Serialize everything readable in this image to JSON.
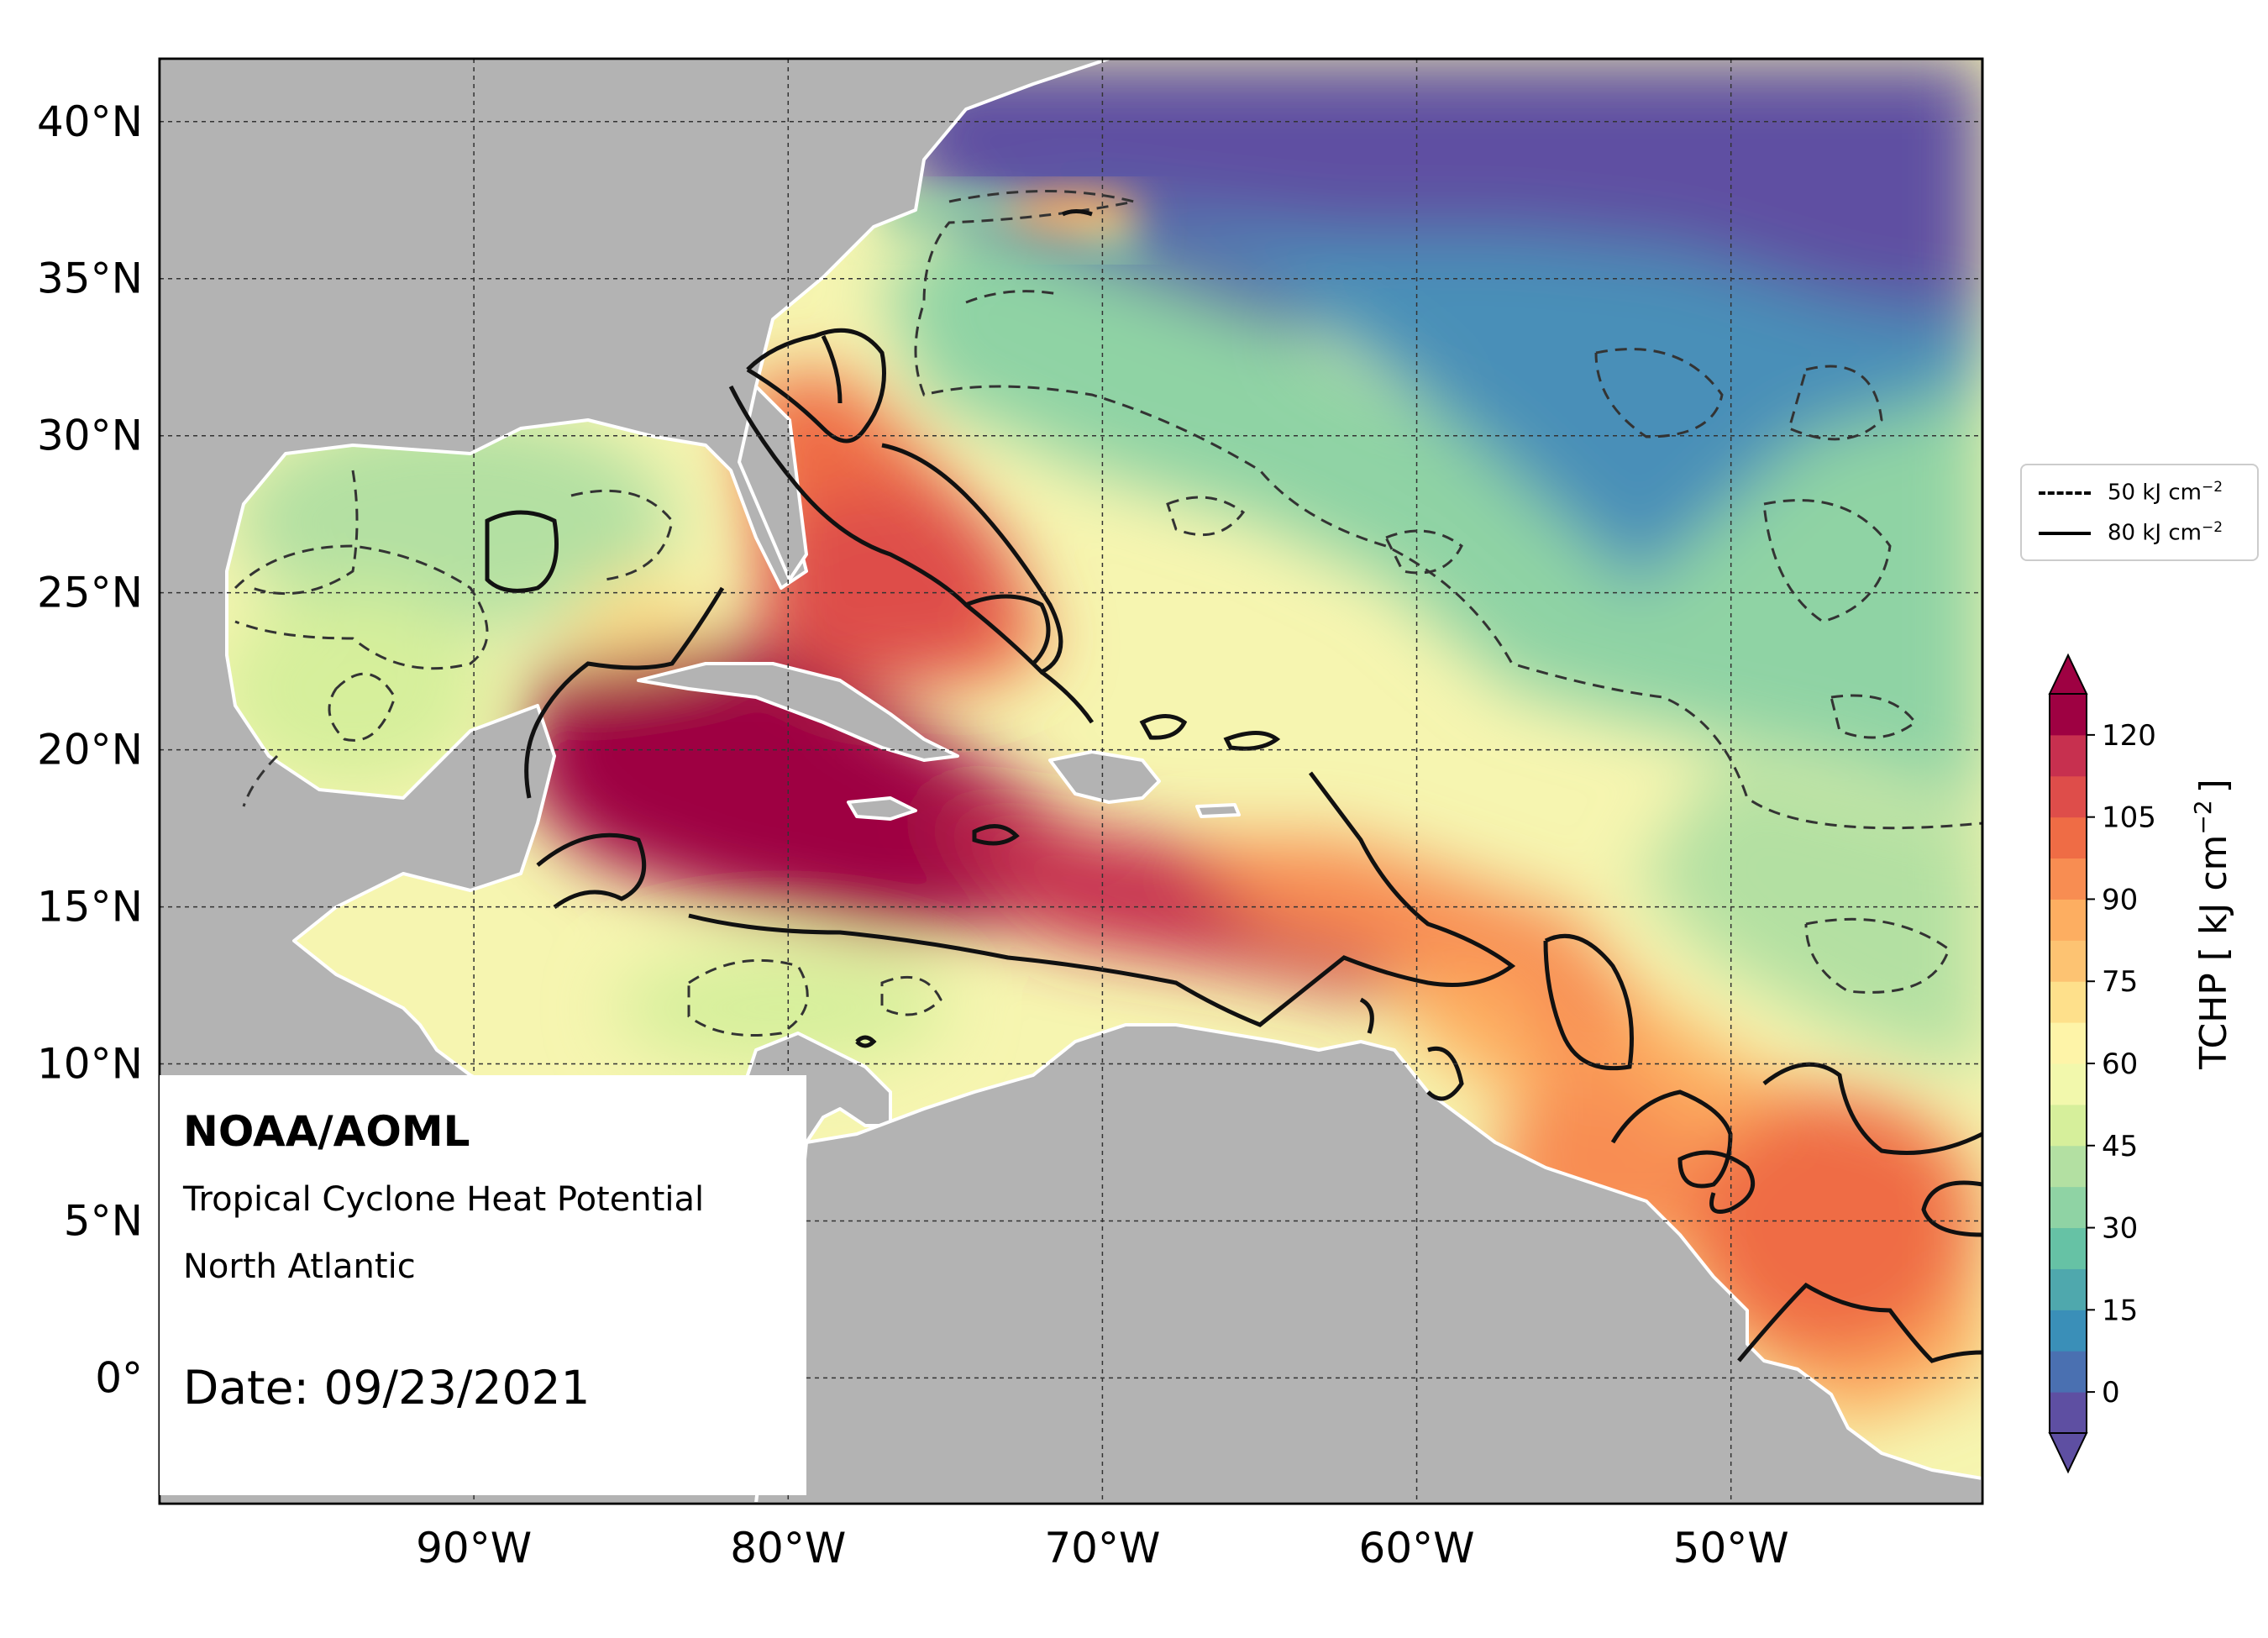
{
  "map": {
    "axes": {
      "lat_labels": [
        "40°N",
        "35°N",
        "30°N",
        "25°N",
        "20°N",
        "15°N",
        "10°N",
        "5°N",
        "0°"
      ],
      "lon_labels": [
        "90°W",
        "80°W",
        "70°W",
        "60°W",
        "50°W"
      ],
      "lat_values": [
        40,
        35,
        30,
        25,
        20,
        15,
        10,
        5,
        0
      ],
      "lon_values": [
        -90,
        -80,
        -70,
        -60,
        -50
      ]
    },
    "extent": {
      "lon_min": -100,
      "lon_max": -42,
      "lat_min": -4,
      "lat_max": 42
    },
    "info": {
      "org": "NOAA/AOML",
      "product": "Tropical Cyclone Heat Potential",
      "region": "North Atlantic",
      "date": "Date: 09/23/2021"
    },
    "legend": {
      "items": [
        {
          "style": "dashed",
          "value": "50",
          "unit": "kJ cm",
          "exp": "−2"
        },
        {
          "style": "solid",
          "value": "80",
          "unit": "kJ cm",
          "exp": "−2"
        }
      ]
    },
    "colorbar": {
      "label": "TCHP [ kJ cm",
      "label_exp": "−2",
      "label_close": "]",
      "ticks": [
        "120",
        "105",
        "90",
        "75",
        "60",
        "45",
        "30",
        "15",
        "0"
      ],
      "tick_values": [
        120,
        105,
        90,
        75,
        60,
        45,
        30,
        15,
        0
      ],
      "colors": [
        "#5e4fa2",
        "#4a70b1",
        "#3a8fb8",
        "#4fa8ad",
        "#66c2a5",
        "#8fd3a4",
        "#b3e0a2",
        "#d6ef9b",
        "#f2f8ac",
        "#fef4a8",
        "#fee08b",
        "#fdc372",
        "#fdae61",
        "#f88d52",
        "#ef6c45",
        "#de4d4a",
        "#c7304f",
        "#9e0142"
      ],
      "colors_stops": [
        0,
        7.5,
        15,
        22.5,
        30,
        37.5,
        45,
        52.5,
        60,
        67.5,
        75,
        82.5,
        90,
        97.5,
        105,
        112.5,
        120
      ]
    },
    "land_color": "#b3b3b3",
    "ocean_deep": "#5e4fa2"
  }
}
